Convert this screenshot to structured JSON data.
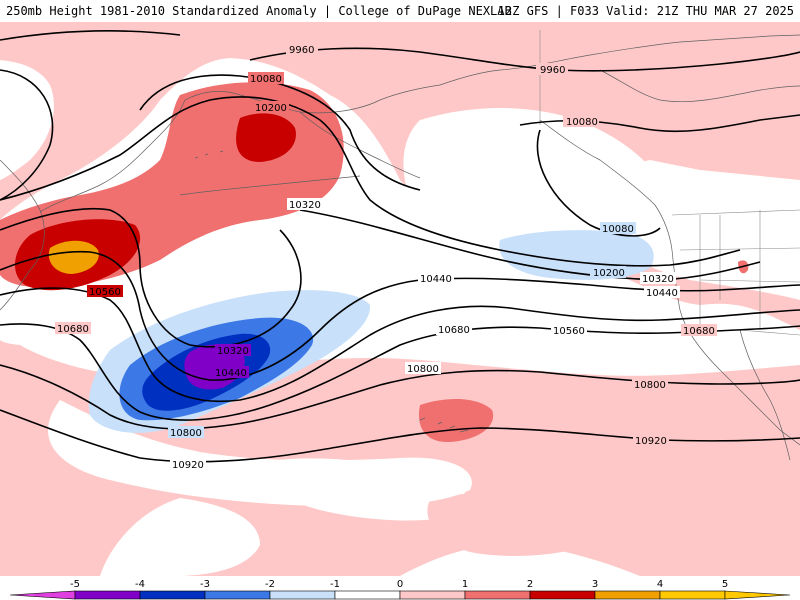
{
  "header": {
    "title": "250mb Height 1981-2010 Standardized Anomaly | College of DuPage NEXLAB",
    "run_info": "12Z GFS | F033 Valid: 21Z THU MAR 27 2025"
  },
  "contour_labels": [
    {
      "id": "lbl-9960-a",
      "text": "9960"
    },
    {
      "id": "lbl-9960-b",
      "text": "9960"
    },
    {
      "id": "lbl-10080-a",
      "text": "10080"
    },
    {
      "id": "lbl-10080-b",
      "text": "10080"
    },
    {
      "id": "lbl-10080-c",
      "text": "10080"
    },
    {
      "id": "lbl-10200-a",
      "text": "10200"
    },
    {
      "id": "lbl-10200-b",
      "text": "10200"
    },
    {
      "id": "lbl-10320-a",
      "text": "10320"
    },
    {
      "id": "lbl-10320-b",
      "text": "10320"
    },
    {
      "id": "lbl-10320-c",
      "text": "10320"
    },
    {
      "id": "lbl-10440-a",
      "text": "10440"
    },
    {
      "id": "lbl-10440-b",
      "text": "10440"
    },
    {
      "id": "lbl-10440-c",
      "text": "10440"
    },
    {
      "id": "lbl-10560-a",
      "text": "10560"
    },
    {
      "id": "lbl-10560-b",
      "text": "10560"
    },
    {
      "id": "lbl-10680-a",
      "text": "10680"
    },
    {
      "id": "lbl-10680-b",
      "text": "10680"
    },
    {
      "id": "lbl-10680-c",
      "text": "10680"
    },
    {
      "id": "lbl-10800-a",
      "text": "10800"
    },
    {
      "id": "lbl-10800-b",
      "text": "10800"
    },
    {
      "id": "lbl-10800-c",
      "text": "10800"
    },
    {
      "id": "lbl-10920-a",
      "text": "10920"
    },
    {
      "id": "lbl-10920-b",
      "text": "10920"
    }
  ],
  "colorbar": {
    "ticks": [
      "-5",
      "-4",
      "-3",
      "-2",
      "-1",
      "0",
      "1",
      "2",
      "3",
      "4",
      "5"
    ],
    "colors": {
      "neg5": "#e040e0",
      "neg4": "#8000c8",
      "neg3": "#0030c0",
      "neg2": "#3c78e6",
      "neg1": "#c8e0fa",
      "zero": "#ffffff",
      "pos1": "#ffc8c8",
      "pos2": "#f07070",
      "pos3": "#c80000",
      "pos4": "#f0a000",
      "pos5": "#ffc800"
    }
  }
}
